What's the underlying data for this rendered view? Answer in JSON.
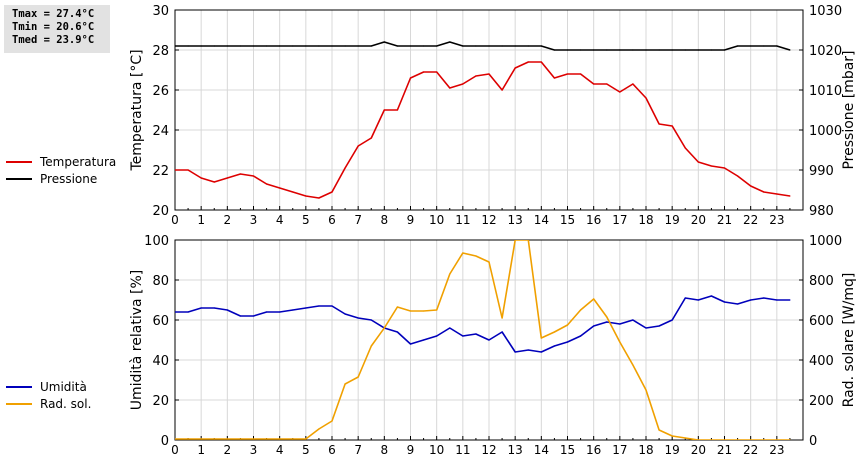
{
  "stats": {
    "tmax": "Tmax = 27.4°C",
    "tmin": "Tmin = 20.6°C",
    "tmed": "Tmed = 23.9°C"
  },
  "chart_data": [
    {
      "type": "line",
      "ylabel": "Temperatura [°C]",
      "y2label": "Pressione [mbar]",
      "xlim": [
        0,
        24
      ],
      "xticks": [
        0,
        1,
        2,
        3,
        4,
        5,
        6,
        7,
        8,
        9,
        10,
        11,
        12,
        13,
        14,
        15,
        16,
        17,
        18,
        19,
        20,
        21,
        22,
        23
      ],
      "ylim": [
        20,
        30
      ],
      "yticks": [
        20,
        22,
        24,
        26,
        28,
        30
      ],
      "y2lim": [
        980,
        1030
      ],
      "y2ticks": [
        980,
        990,
        1000,
        1010,
        1020,
        1030
      ],
      "grid": true,
      "legend_position": "left",
      "series": [
        {
          "name": "Temperatura",
          "axis": "left",
          "color": "#dd0000",
          "x": [
            0,
            0.5,
            1,
            1.5,
            2,
            2.5,
            3,
            3.5,
            4,
            4.5,
            5,
            5.5,
            6,
            6.5,
            7,
            7.5,
            8,
            8.5,
            9,
            9.5,
            10,
            10.5,
            11,
            11.5,
            12,
            12.5,
            13,
            13.5,
            14,
            14.5,
            15,
            15.5,
            16,
            16.5,
            17,
            17.5,
            18,
            18.5,
            19,
            19.5,
            20,
            20.5,
            21,
            21.5,
            22,
            22.5,
            23,
            23.5
          ],
          "y": [
            22.0,
            22.0,
            21.6,
            21.4,
            21.6,
            21.8,
            21.7,
            21.3,
            21.1,
            20.9,
            20.7,
            20.6,
            20.9,
            22.1,
            23.2,
            23.6,
            25.0,
            25.0,
            26.6,
            26.9,
            26.9,
            26.1,
            26.3,
            26.7,
            26.8,
            26.0,
            27.1,
            27.4,
            27.4,
            26.6,
            26.8,
            26.8,
            26.3,
            26.3,
            25.9,
            26.3,
            25.6,
            24.3,
            24.2,
            23.1,
            22.4,
            22.2,
            22.1,
            21.7,
            21.2,
            20.9,
            20.8,
            20.7
          ]
        },
        {
          "name": "Pressione",
          "axis": "right",
          "color": "#000000",
          "x": [
            0,
            0.5,
            1,
            1.5,
            2,
            2.5,
            3,
            3.5,
            4,
            4.5,
            5,
            5.5,
            6,
            6.5,
            7,
            7.5,
            8,
            8.5,
            9,
            9.5,
            10,
            10.5,
            11,
            11.5,
            12,
            12.5,
            13,
            13.5,
            14,
            14.5,
            15,
            15.5,
            16,
            16.5,
            17,
            17.5,
            18,
            18.5,
            19,
            19.5,
            20,
            20.5,
            21,
            21.5,
            22,
            22.5,
            23,
            23.5
          ],
          "y": [
            1021,
            1021,
            1021,
            1021,
            1021,
            1021,
            1021,
            1021,
            1021,
            1021,
            1021,
            1021,
            1021,
            1021,
            1021,
            1021,
            1022,
            1021,
            1021,
            1021,
            1021,
            1022,
            1021,
            1021,
            1021,
            1021,
            1021,
            1021,
            1021,
            1020,
            1020,
            1020,
            1020,
            1020,
            1020,
            1020,
            1020,
            1020,
            1020,
            1020,
            1020,
            1020,
            1020,
            1021,
            1021,
            1021,
            1021,
            1020
          ]
        }
      ]
    },
    {
      "type": "line",
      "ylabel": "Umidità relativa [%]",
      "y2label": "Rad. solare [W/mq]",
      "xlim": [
        0,
        24
      ],
      "xticks": [
        0,
        1,
        2,
        3,
        4,
        5,
        6,
        7,
        8,
        9,
        10,
        11,
        12,
        13,
        14,
        15,
        16,
        17,
        18,
        19,
        20,
        21,
        22,
        23
      ],
      "ylim": [
        0,
        100
      ],
      "yticks": [
        0,
        20,
        40,
        60,
        80,
        100
      ],
      "y2lim": [
        0,
        1000
      ],
      "y2ticks": [
        0,
        200,
        400,
        600,
        800,
        1000
      ],
      "grid": true,
      "legend_position": "left",
      "series": [
        {
          "name": "Umidità",
          "axis": "left",
          "color": "#0000bb",
          "x": [
            0,
            0.5,
            1,
            1.5,
            2,
            2.5,
            3,
            3.5,
            4,
            4.5,
            5,
            5.5,
            6,
            6.5,
            7,
            7.5,
            8,
            8.5,
            9,
            9.5,
            10,
            10.5,
            11,
            11.5,
            12,
            12.5,
            13,
            13.5,
            14,
            14.5,
            15,
            15.5,
            16,
            16.5,
            17,
            17.5,
            18,
            18.5,
            19,
            19.5,
            20,
            20.5,
            21,
            21.5,
            22,
            22.5,
            23,
            23.5
          ],
          "y": [
            64,
            64,
            66,
            66,
            65,
            62,
            62,
            64,
            64,
            65,
            66,
            67,
            67,
            63,
            61,
            60,
            56,
            54,
            48,
            50,
            52,
            56,
            52,
            53,
            50,
            54,
            44,
            45,
            44,
            47,
            49,
            52,
            57,
            59,
            58,
            60,
            56,
            57,
            60,
            71,
            70,
            72,
            69,
            68,
            70,
            71,
            70,
            70
          ]
        },
        {
          "name": "Rad. sol.",
          "axis": "right",
          "color": "#f0a000",
          "x": [
            0,
            0.5,
            1,
            1.5,
            2,
            2.5,
            3,
            3.5,
            4,
            4.5,
            5,
            5.5,
            6,
            6.5,
            7,
            7.5,
            8,
            8.5,
            9,
            9.5,
            10,
            10.5,
            11,
            11.5,
            12,
            12.5,
            13,
            13.5,
            14,
            14.5,
            15,
            15.5,
            16,
            16.5,
            17,
            17.5,
            18,
            18.5,
            19,
            19.5,
            20,
            20.5,
            21,
            21.5,
            22,
            22.5,
            23,
            23.5
          ],
          "y": [
            5,
            5,
            5,
            5,
            5,
            5,
            5,
            5,
            5,
            5,
            5,
            55,
            95,
            280,
            315,
            470,
            560,
            665,
            645,
            645,
            650,
            830,
            935,
            920,
            890,
            610,
            1000,
            1000,
            510,
            540,
            575,
            650,
            705,
            615,
            490,
            375,
            250,
            50,
            20,
            10,
            0,
            0,
            0,
            0,
            0,
            0,
            0,
            0
          ]
        }
      ]
    }
  ]
}
